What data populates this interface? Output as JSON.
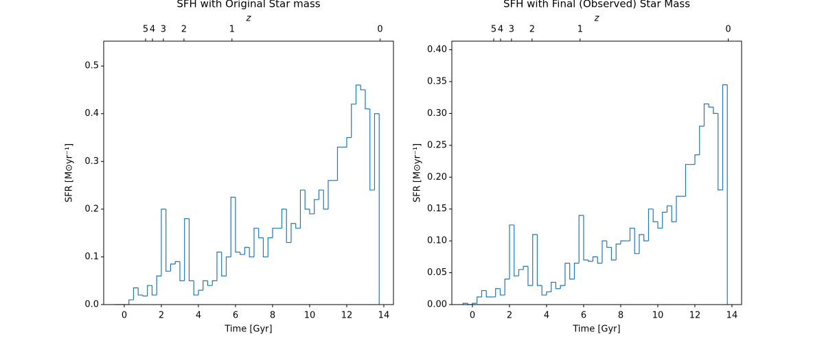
{
  "chart_data": [
    {
      "type": "histogram",
      "title": "SFH with Original Star mass",
      "xlabel": "Time [Gyr]",
      "ylabel": "SFR [M⊙yr⁻¹]",
      "x2label": "z",
      "xlim": [
        -1.11,
        14.52
      ],
      "ylim": [
        0,
        0.552
      ],
      "xticks": [
        0,
        2,
        4,
        6,
        8,
        10,
        12,
        14
      ],
      "yticks": [
        {
          "value": 0,
          "label": "0.0"
        },
        0.1,
        0.2,
        0.3,
        0.4,
        0.5
      ],
      "x2ticks": [
        {
          "value": 1.15,
          "label": "5"
        },
        {
          "value": 1.52,
          "label": "4"
        },
        {
          "value": 2.11,
          "label": "3"
        },
        {
          "value": 3.22,
          "label": "2"
        },
        {
          "value": 5.81,
          "label": "1"
        },
        {
          "value": 13.8,
          "label": "0"
        }
      ],
      "color": "#1f77b4",
      "bins": [
        -0.5,
        -0.25,
        0,
        0.25,
        0.5,
        0.75,
        1,
        1.25,
        1.5,
        1.75,
        2,
        2.25,
        2.5,
        2.75,
        3,
        3.25,
        3.5,
        3.75,
        4,
        4.25,
        4.5,
        4.75,
        5,
        5.25,
        5.5,
        5.75,
        6,
        6.25,
        6.5,
        6.75,
        7,
        7.25,
        7.5,
        7.75,
        8,
        8.25,
        8.5,
        8.75,
        9,
        9.25,
        9.5,
        9.75,
        10,
        10.25,
        10.5,
        10.75,
        11,
        11.25,
        11.5,
        11.75,
        12,
        12.25,
        12.5,
        12.75,
        13,
        13.25,
        13.5,
        13.75
      ],
      "values": [
        0,
        0,
        0,
        0.01,
        0.035,
        0.02,
        0.018,
        0.04,
        0.02,
        0.06,
        0.2,
        0.07,
        0.085,
        0.09,
        0.05,
        0.18,
        0.05,
        0.02,
        0.03,
        0.05,
        0.04,
        0.05,
        0.11,
        0.06,
        0.1,
        0.225,
        0.11,
        0.105,
        0.12,
        0.1,
        0.16,
        0.14,
        0.1,
        0.14,
        0.16,
        0.16,
        0.2,
        0.13,
        0.17,
        0.16,
        0.24,
        0.2,
        0.19,
        0.22,
        0.24,
        0.2,
        0.26,
        0.26,
        0.33,
        0.33,
        0.35,
        0.42,
        0.46,
        0.45,
        0.41,
        0.24,
        0.4
      ]
    },
    {
      "type": "histogram",
      "title": "SFH with Final (Observed) Star Mass",
      "xlabel": "Time [Gyr]",
      "ylabel": "SFR [M⊙yr⁻¹]",
      "x2label": "z",
      "xlim": [
        -1.11,
        14.52
      ],
      "ylim": [
        0,
        0.4135
      ],
      "xticks": [
        0,
        2,
        4,
        6,
        8,
        10,
        12,
        14
      ],
      "yticks": [
        {
          "value": 0,
          "label": "0.00"
        },
        {
          "value": 0.05,
          "label": "0.05"
        },
        {
          "value": 0.1,
          "label": "0.10"
        },
        {
          "value": 0.15,
          "label": "0.15"
        },
        {
          "value": 0.2,
          "label": "0.20"
        },
        {
          "value": 0.25,
          "label": "0.25"
        },
        {
          "value": 0.3,
          "label": "0.30"
        },
        {
          "value": 0.35,
          "label": "0.35"
        },
        {
          "value": 0.4,
          "label": "0.40"
        }
      ],
      "x2ticks": [
        {
          "value": 1.15,
          "label": "5"
        },
        {
          "value": 1.52,
          "label": "4"
        },
        {
          "value": 2.11,
          "label": "3"
        },
        {
          "value": 3.22,
          "label": "2"
        },
        {
          "value": 5.81,
          "label": "1"
        },
        {
          "value": 13.8,
          "label": "0"
        }
      ],
      "color": "#1f77b4",
      "bins": [
        -0.5,
        -0.25,
        0,
        0.25,
        0.5,
        0.75,
        1,
        1.25,
        1.5,
        1.75,
        2,
        2.25,
        2.5,
        2.75,
        3,
        3.25,
        3.5,
        3.75,
        4,
        4.25,
        4.5,
        4.75,
        5,
        5.25,
        5.5,
        5.75,
        6,
        6.25,
        6.5,
        6.75,
        7,
        7.25,
        7.5,
        7.75,
        8,
        8.25,
        8.5,
        8.75,
        9,
        9.25,
        9.5,
        9.75,
        10,
        10.25,
        10.5,
        10.75,
        11,
        11.25,
        11.5,
        11.75,
        12,
        12.25,
        12.5,
        12.75,
        13,
        13.25,
        13.5,
        13.75
      ],
      "values": [
        0.002,
        0,
        0.002,
        0.012,
        0.022,
        0.012,
        0.012,
        0.025,
        0.015,
        0.04,
        0.125,
        0.045,
        0.055,
        0.06,
        0.03,
        0.11,
        0.03,
        0.015,
        0.02,
        0.035,
        0.025,
        0.03,
        0.065,
        0.04,
        0.065,
        0.14,
        0.07,
        0.068,
        0.075,
        0.065,
        0.1,
        0.09,
        0.07,
        0.095,
        0.1,
        0.1,
        0.12,
        0.08,
        0.11,
        0.1,
        0.15,
        0.13,
        0.12,
        0.145,
        0.155,
        0.13,
        0.17,
        0.17,
        0.22,
        0.22,
        0.235,
        0.28,
        0.315,
        0.31,
        0.3,
        0.18,
        0.345
      ]
    }
  ]
}
